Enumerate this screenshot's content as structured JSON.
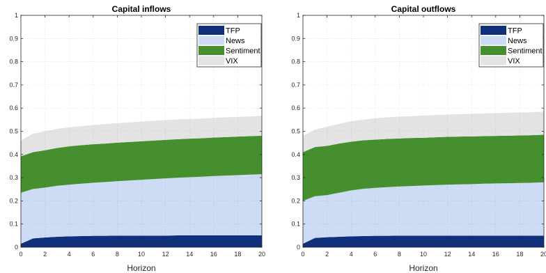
{
  "colors": {
    "TFP": "#10307c",
    "News": "#cddcf4",
    "Sentiment": "#468f2e",
    "VIX": "#e3e3e3"
  },
  "chart_data": [
    {
      "type": "area",
      "stacked": true,
      "title": "Capital inflows",
      "xlabel": "Horizon",
      "ylabel": "",
      "xlim": [
        0,
        20
      ],
      "ylim": [
        0,
        1
      ],
      "xticks": [
        "0",
        "2",
        "4",
        "6",
        "8",
        "10",
        "12",
        "14",
        "16",
        "18",
        "20"
      ],
      "yticks": [
        "0",
        "0.1",
        "0.2",
        "0.3",
        "0.4",
        "0.5",
        "0.6",
        "0.7",
        "0.8",
        "0.9",
        "1"
      ],
      "grid": true,
      "legend_position": "top-right",
      "x": [
        0,
        1,
        2,
        3,
        4,
        5,
        6,
        7,
        8,
        9,
        10,
        11,
        12,
        13,
        14,
        15,
        16,
        17,
        18,
        19,
        20
      ],
      "series": [
        {
          "name": "TFP",
          "values": [
            0.015,
            0.038,
            0.042,
            0.045,
            0.047,
            0.048,
            0.049,
            0.049,
            0.05,
            0.05,
            0.05,
            0.05,
            0.05,
            0.051,
            0.051,
            0.051,
            0.051,
            0.051,
            0.051,
            0.051,
            0.051
          ]
        },
        {
          "name": "News",
          "values": [
            0.22,
            0.213,
            0.215,
            0.22,
            0.223,
            0.226,
            0.229,
            0.232,
            0.235,
            0.238,
            0.241,
            0.244,
            0.247,
            0.249,
            0.251,
            0.253,
            0.256,
            0.258,
            0.26,
            0.262,
            0.264
          ]
        },
        {
          "name": "Sentiment",
          "values": [
            0.157,
            0.159,
            0.161,
            0.163,
            0.165,
            0.166,
            0.166,
            0.166,
            0.166,
            0.166,
            0.166,
            0.166,
            0.166,
            0.166,
            0.166,
            0.166,
            0.166,
            0.166,
            0.166,
            0.166,
            0.166
          ]
        },
        {
          "name": "VIX",
          "values": [
            0.068,
            0.08,
            0.082,
            0.082,
            0.082,
            0.082,
            0.083,
            0.084,
            0.084,
            0.084,
            0.085,
            0.085,
            0.085,
            0.085,
            0.085,
            0.085,
            0.085,
            0.085,
            0.085,
            0.085,
            0.086
          ]
        }
      ]
    },
    {
      "type": "area",
      "stacked": true,
      "title": "Capital outflows",
      "xlabel": "Horizon",
      "ylabel": "",
      "xlim": [
        0,
        20
      ],
      "ylim": [
        0,
        1
      ],
      "xticks": [
        "0",
        "2",
        "4",
        "6",
        "8",
        "10",
        "12",
        "14",
        "16",
        "18",
        "20"
      ],
      "yticks": [
        "0",
        "0.1",
        "0.2",
        "0.3",
        "0.4",
        "0.5",
        "0.6",
        "0.7",
        "0.8",
        "0.9",
        "1"
      ],
      "grid": true,
      "legend_position": "top-right",
      "x": [
        0,
        1,
        2,
        3,
        4,
        5,
        6,
        7,
        8,
        9,
        10,
        11,
        12,
        13,
        14,
        15,
        16,
        17,
        18,
        19,
        20
      ],
      "series": [
        {
          "name": "TFP",
          "values": [
            0.015,
            0.04,
            0.043,
            0.045,
            0.047,
            0.048,
            0.049,
            0.049,
            0.05,
            0.05,
            0.05,
            0.05,
            0.05,
            0.05,
            0.05,
            0.05,
            0.05,
            0.05,
            0.05,
            0.05,
            0.05
          ]
        },
        {
          "name": "News",
          "values": [
            0.185,
            0.18,
            0.182,
            0.19,
            0.198,
            0.204,
            0.207,
            0.21,
            0.212,
            0.214,
            0.216,
            0.218,
            0.22,
            0.221,
            0.222,
            0.224,
            0.225,
            0.226,
            0.227,
            0.228,
            0.23
          ]
        },
        {
          "name": "Sentiment",
          "values": [
            0.21,
            0.212,
            0.212,
            0.212,
            0.21,
            0.209,
            0.208,
            0.208,
            0.207,
            0.207,
            0.206,
            0.206,
            0.206,
            0.206,
            0.206,
            0.205,
            0.205,
            0.205,
            0.205,
            0.205,
            0.205
          ]
        },
        {
          "name": "VIX",
          "values": [
            0.07,
            0.075,
            0.083,
            0.085,
            0.088,
            0.089,
            0.092,
            0.093,
            0.094,
            0.094,
            0.096,
            0.096,
            0.096,
            0.097,
            0.097,
            0.098,
            0.098,
            0.099,
            0.099,
            0.099,
            0.1
          ]
        }
      ]
    }
  ]
}
